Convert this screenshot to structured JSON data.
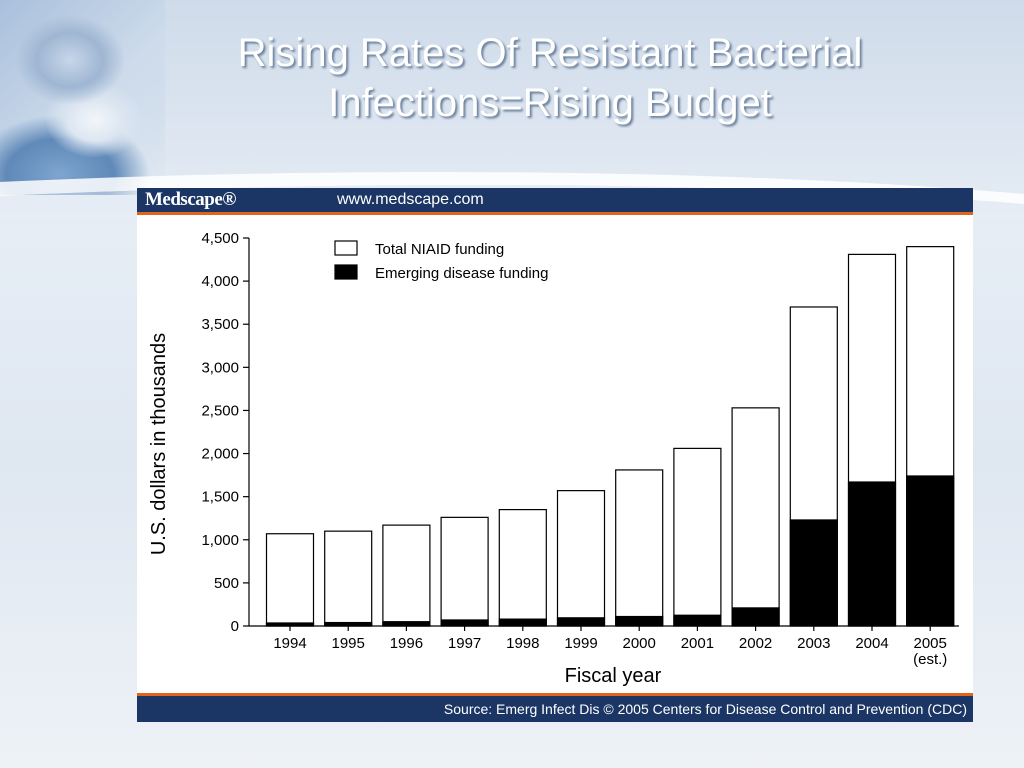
{
  "slide": {
    "title_line1": "Rising Rates Of Resistant Bacterial",
    "title_line2": "Infections=Rising Budget"
  },
  "chart_frame": {
    "logo": "Medscape®",
    "url": "www.medscape.com",
    "source": "Source: Emerg Infect Dis © 2005 Centers for Disease Control and Prevention (CDC)"
  },
  "colors": {
    "header": "#1b3665",
    "accent": "#e0641e",
    "total_bar": "#ffffff",
    "emerging_bar": "#000000"
  },
  "chart_data": {
    "type": "bar",
    "stacked_overlap": true,
    "xlabel": "Fiscal year",
    "ylabel": "U.S. dollars in thousands",
    "ylim": [
      0,
      4500
    ],
    "yticks": [
      "0",
      "500",
      "1,000",
      "1,500",
      "2,000",
      "2,500",
      "3,000",
      "3,500",
      "4,000",
      "4,500"
    ],
    "ytick_values": [
      0,
      500,
      1000,
      1500,
      2000,
      2500,
      3000,
      3500,
      4000,
      4500
    ],
    "categories": [
      "1994",
      "1995",
      "1996",
      "1997",
      "1998",
      "1999",
      "2000",
      "2001",
      "2002",
      "2003",
      "2004",
      "2005"
    ],
    "category_sublabels": [
      "",
      "",
      "",
      "",
      "",
      "",
      "",
      "",
      "",
      "",
      "",
      "(est.)"
    ],
    "legend_position": "top-left",
    "series": [
      {
        "name": "Total NIAID funding",
        "values": [
          1070,
          1100,
          1170,
          1260,
          1350,
          1570,
          1810,
          2060,
          2530,
          3700,
          4310,
          4400
        ]
      },
      {
        "name": "Emerging disease funding",
        "values": [
          35,
          40,
          50,
          70,
          80,
          95,
          110,
          125,
          210,
          1230,
          1670,
          1740
        ]
      }
    ]
  }
}
